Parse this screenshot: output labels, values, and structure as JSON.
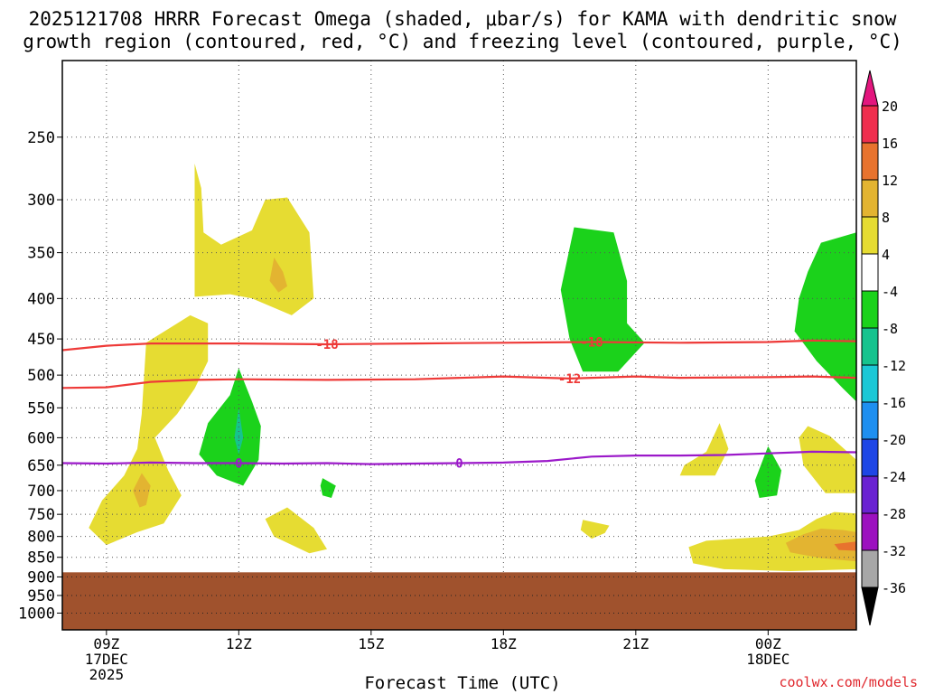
{
  "title": {
    "line1": "2025121708 HRRR Forecast Omega (shaded, μbar/s) for KAMA with dendritic snow",
    "line2": "growth region (contoured, red, °C) and freezing level (contoured, purple, °C)"
  },
  "credit": "coolwx.com/models",
  "chart_data": {
    "type": "time-height cross section",
    "title": "2025121708 HRRR Forecast Omega (shaded, μbar/s) for KAMA with dendritic snow growth region (contoured, red, °C) and freezing level (contoured, purple, °C)",
    "xlabel": "Forecast Time (UTC)",
    "ylabel": "",
    "x_ticks": [
      {
        "hour": 9,
        "lines": [
          "09Z",
          "17DEC",
          "2025"
        ]
      },
      {
        "hour": 12,
        "lines": [
          "12Z"
        ]
      },
      {
        "hour": 15,
        "lines": [
          "15Z"
        ]
      },
      {
        "hour": 18,
        "lines": [
          "18Z"
        ]
      },
      {
        "hour": 21,
        "lines": [
          "21Z"
        ]
      },
      {
        "hour": 24,
        "lines": [
          "00Z",
          "18DEC"
        ]
      }
    ],
    "xlim": [
      8,
      26
    ],
    "y_scale": "log-pressure",
    "ylim": [
      1050,
      200
    ],
    "y_ticks": [
      250,
      300,
      350,
      400,
      450,
      500,
      550,
      600,
      650,
      700,
      750,
      800,
      850,
      900,
      950,
      1000
    ],
    "grid": "dotted",
    "terrain": {
      "surface_pressure_hPa": 888,
      "color": "#a0522d"
    },
    "colorbar": {
      "orientation": "vertical",
      "labels": [
        "20",
        "16",
        "12",
        "8",
        "4",
        "-4",
        "-8",
        "-12",
        "-16",
        "-20",
        "-24",
        "-28",
        "-32",
        "-36"
      ],
      "colors": [
        "#ef2e4e",
        "#e8732e",
        "#e3b431",
        "#e6dc32",
        "#ffffff",
        "#1bd21b",
        "#16c38e",
        "#1cc8d6",
        "#1e8ff0",
        "#1e46e6",
        "#6a22d2",
        "#9c11bf",
        "#a7a7a7"
      ],
      "top_extend_color": "#e3167e",
      "bottom_extend_color": "#000000"
    },
    "contours": [
      {
        "name": "-18",
        "color": "#ee3a38",
        "label_hours": [
          14,
          20
        ],
        "points": [
          [
            8,
            465
          ],
          [
            9,
            459
          ],
          [
            10,
            456
          ],
          [
            12,
            456
          ],
          [
            14,
            457
          ],
          [
            16,
            456
          ],
          [
            18,
            455
          ],
          [
            20,
            454
          ],
          [
            22,
            455
          ],
          [
            24,
            454
          ],
          [
            25,
            452
          ],
          [
            26,
            453
          ]
        ]
      },
      {
        "name": "-12",
        "color": "#ee3a38",
        "label_hours": [
          19.5
        ],
        "points": [
          [
            8,
            519
          ],
          [
            9,
            518
          ],
          [
            10,
            510
          ],
          [
            11,
            507
          ],
          [
            12,
            506
          ],
          [
            14,
            507
          ],
          [
            16,
            506
          ],
          [
            18,
            502
          ],
          [
            19.5,
            505
          ],
          [
            21,
            502
          ],
          [
            22,
            504
          ],
          [
            24,
            503
          ],
          [
            25,
            502
          ],
          [
            26,
            504
          ]
        ]
      },
      {
        "name": "0",
        "color": "#9b19c9",
        "label_hours": [
          12,
          17
        ],
        "points": [
          [
            8,
            646
          ],
          [
            9,
            647
          ],
          [
            10,
            645
          ],
          [
            11,
            646
          ],
          [
            12,
            646
          ],
          [
            13,
            647
          ],
          [
            14,
            646
          ],
          [
            15,
            648
          ],
          [
            16,
            647
          ],
          [
            17,
            646
          ],
          [
            18,
            645
          ],
          [
            19,
            642
          ],
          [
            20,
            634
          ],
          [
            21,
            632
          ],
          [
            22,
            632
          ],
          [
            23,
            631
          ],
          [
            24,
            628
          ],
          [
            25,
            625
          ],
          [
            26,
            626
          ]
        ]
      }
    ],
    "omega_regions": [
      {
        "level": "4",
        "color": "#e6dc32",
        "points": [
          [
            11,
            270
          ],
          [
            11.15,
            290
          ],
          [
            11.2,
            330
          ],
          [
            11.6,
            342
          ],
          [
            12.3,
            328
          ],
          [
            12.6,
            300
          ],
          [
            13.1,
            298
          ],
          [
            13.6,
            330
          ],
          [
            13.7,
            400
          ],
          [
            13.2,
            420
          ],
          [
            12.3,
            400
          ],
          [
            11.8,
            395
          ],
          [
            11,
            398
          ]
        ]
      },
      {
        "level": "8",
        "color": "#e3b431",
        "points": [
          [
            12.8,
            355
          ],
          [
            13.0,
            370
          ],
          [
            13.1,
            386
          ],
          [
            12.9,
            393
          ],
          [
            12.7,
            380
          ]
        ]
      },
      {
        "level": "4",
        "color": "#e6dc32",
        "points": [
          [
            9.9,
            455
          ],
          [
            10.9,
            420
          ],
          [
            11.3,
            430
          ],
          [
            11.3,
            480
          ],
          [
            11.0,
            520
          ],
          [
            10.6,
            560
          ],
          [
            10.1,
            600
          ],
          [
            10.4,
            660
          ],
          [
            10.7,
            710
          ],
          [
            10.3,
            770
          ],
          [
            9.7,
            790
          ],
          [
            9.0,
            820
          ],
          [
            8.6,
            780
          ],
          [
            8.9,
            720
          ],
          [
            9.4,
            670
          ],
          [
            9.7,
            620
          ],
          [
            9.8,
            560
          ]
        ]
      },
      {
        "level": "8",
        "color": "#e3b431",
        "points": [
          [
            9.8,
            665
          ],
          [
            10.0,
            690
          ],
          [
            9.9,
            730
          ],
          [
            9.75,
            735
          ],
          [
            9.6,
            700
          ]
        ]
      },
      {
        "level": "-4",
        "color": "#1bd21b",
        "points": [
          [
            12.0,
            490
          ],
          [
            12.3,
            540
          ],
          [
            12.5,
            580
          ],
          [
            12.45,
            640
          ],
          [
            12.1,
            690
          ],
          [
            11.5,
            670
          ],
          [
            11.1,
            630
          ],
          [
            11.3,
            575
          ],
          [
            11.8,
            530
          ]
        ]
      },
      {
        "level": "-8",
        "color": "#16c38e",
        "points": [
          [
            12.0,
            550
          ],
          [
            12.1,
            600
          ],
          [
            12.0,
            630
          ],
          [
            11.9,
            600
          ]
        ]
      },
      {
        "level": "-4",
        "color": "#1bd21b",
        "points": [
          [
            13.9,
            675
          ],
          [
            14.2,
            690
          ],
          [
            14.1,
            715
          ],
          [
            13.9,
            710
          ],
          [
            13.85,
            690
          ]
        ]
      },
      {
        "level": "4",
        "color": "#e6dc32",
        "points": [
          [
            12.6,
            760
          ],
          [
            13.1,
            735
          ],
          [
            13.7,
            780
          ],
          [
            14.0,
            830
          ],
          [
            13.6,
            840
          ],
          [
            12.8,
            800
          ]
        ]
      },
      {
        "level": "-4",
        "color": "#1bd21b",
        "points": [
          [
            19.6,
            325
          ],
          [
            20.5,
            330
          ],
          [
            20.8,
            380
          ],
          [
            20.8,
            430
          ],
          [
            21.2,
            455
          ],
          [
            20.6,
            495
          ],
          [
            19.8,
            495
          ],
          [
            19.5,
            450
          ],
          [
            19.3,
            390
          ]
        ]
      },
      {
        "level": "4",
        "color": "#e6dc32",
        "points": [
          [
            19.8,
            762
          ],
          [
            20.4,
            775
          ],
          [
            20.3,
            792
          ],
          [
            20.0,
            805
          ],
          [
            19.75,
            785
          ]
        ]
      },
      {
        "level": "4",
        "color": "#e6dc32",
        "points": [
          [
            22.9,
            575
          ],
          [
            23.1,
            620
          ],
          [
            22.8,
            670
          ],
          [
            22.0,
            670
          ],
          [
            22.1,
            650
          ],
          [
            22.6,
            625
          ]
        ]
      },
      {
        "level": "-4",
        "color": "#1bd21b",
        "points": [
          [
            24.0,
            615
          ],
          [
            24.3,
            660
          ],
          [
            24.2,
            710
          ],
          [
            23.8,
            715
          ],
          [
            23.7,
            680
          ]
        ]
      },
      {
        "level": "4",
        "color": "#e6dc32",
        "points": [
          [
            22.2,
            825
          ],
          [
            22.6,
            810
          ],
          [
            24.0,
            800
          ],
          [
            24.7,
            785
          ],
          [
            25.1,
            760
          ],
          [
            25.5,
            745
          ],
          [
            26,
            748
          ],
          [
            26,
            880
          ],
          [
            24.5,
            885
          ],
          [
            23.0,
            880
          ],
          [
            22.3,
            865
          ]
        ]
      },
      {
        "level": "8",
        "color": "#e3b431",
        "points": [
          [
            24.4,
            815
          ],
          [
            24.8,
            795
          ],
          [
            25.2,
            782
          ],
          [
            25.7,
            785
          ],
          [
            26,
            790
          ],
          [
            26,
            860
          ],
          [
            25.2,
            852
          ],
          [
            24.5,
            838
          ]
        ]
      },
      {
        "level": "12",
        "color": "#e8732e",
        "points": [
          [
            25.5,
            818
          ],
          [
            26,
            812
          ],
          [
            26,
            834
          ],
          [
            25.6,
            832
          ]
        ]
      },
      {
        "level": "4",
        "color": "#e6dc32",
        "points": [
          [
            24.9,
            580
          ],
          [
            25.4,
            597
          ],
          [
            26,
            640
          ],
          [
            26,
            705
          ],
          [
            25.3,
            705
          ],
          [
            24.8,
            650
          ],
          [
            24.7,
            600
          ]
        ]
      },
      {
        "level": "-4",
        "color": "#1bd21b",
        "points": [
          [
            25.2,
            340
          ],
          [
            26,
            330
          ],
          [
            26,
            540
          ],
          [
            25.7,
            520
          ],
          [
            25.1,
            480
          ],
          [
            24.6,
            440
          ],
          [
            24.7,
            400
          ],
          [
            24.9,
            370
          ]
        ]
      }
    ]
  }
}
